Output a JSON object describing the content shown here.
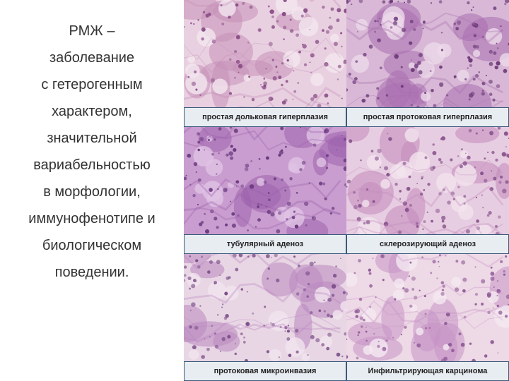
{
  "main_text": {
    "lines": [
      "РМЖ –",
      "заболевание",
      "с гетерогенным",
      "характером,",
      "значительной",
      "вариабельностью",
      "в морфологии,",
      "иммунофенотипе и",
      "биологическом",
      "поведении."
    ]
  },
  "grid": {
    "rows": [
      {
        "cells": [
          {
            "caption": "простая  дольковая гиперплазия",
            "palette": {
              "bg": "#e9d0e1",
              "mid": "#c68fb8",
              "dark": "#8a4d87",
              "light": "#f3e6ef"
            }
          },
          {
            "caption": "простая протоковая гиперплазия",
            "palette": {
              "bg": "#d8b8d6",
              "mid": "#a970b0",
              "dark": "#6e3c7a",
              "light": "#ecd9ea"
            }
          }
        ]
      },
      {
        "cells": [
          {
            "caption": "тубулярный аденоз",
            "palette": {
              "bg": "#c99dcf",
              "mid": "#9c62ad",
              "dark": "#6a3a80",
              "light": "#e0c3e3"
            }
          },
          {
            "caption": "склерозирующий аденоз",
            "palette": {
              "bg": "#e7cde1",
              "mid": "#c28abc",
              "dark": "#8a558f",
              "light": "#f2e3ee"
            }
          }
        ]
      },
      {
        "cells": [
          {
            "caption": "протоковая микроинвазия",
            "palette": {
              "bg": "#e8d6e4",
              "mid": "#ba88bf",
              "dark": "#7a4e88",
              "light": "#f1e5ef"
            }
          },
          {
            "caption": "Инфильтрирующая карцинома",
            "palette": {
              "bg": "#eed9e6",
              "mid": "#c793c5",
              "dark": "#8e5a96",
              "light": "#f5e9f1"
            }
          }
        ]
      }
    ]
  },
  "colors": {
    "caption_border": "#3a5a7a",
    "caption_bg": "#e8edf2",
    "text_color": "#333333"
  }
}
